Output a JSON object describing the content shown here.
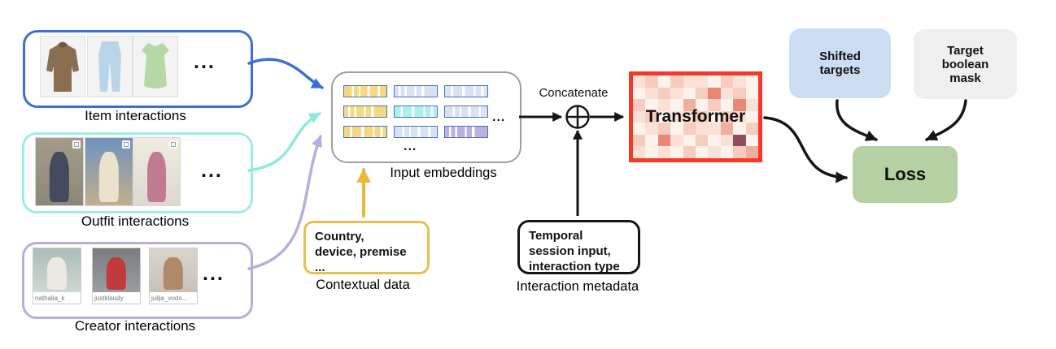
{
  "sources": [
    {
      "label": "Item interactions",
      "ellipsis": "...",
      "border_color": "#3c6fd6",
      "items": [
        {
          "name": "coat",
          "color": "#8a6e52"
        },
        {
          "name": "jeans",
          "color": "#b9d3e9"
        },
        {
          "name": "dress",
          "color": "#b7d8a6"
        }
      ]
    },
    {
      "label": "Outfit interactions",
      "ellipsis": "...",
      "border_color": "#9beee6",
      "photos": [
        {
          "bg1": "#a39c8b",
          "bg2": "#8c8878",
          "figure": "#444b5e"
        },
        {
          "bg1": "#6f93bd",
          "bg2": "#c3ae8d",
          "figure": "#eae2cd"
        },
        {
          "bg1": "#efecdf",
          "bg2": "#ddd8d0",
          "figure": "#c17b90"
        }
      ]
    },
    {
      "label": "Creator interactions",
      "ellipsis": "...",
      "border_color": "#b9addc",
      "creators": [
        {
          "username": "nathalia_k",
          "bg1": "#a9bdb8",
          "bg2": "#cfd8d1",
          "figure": "#ece9e2"
        },
        {
          "username": "justklaudy",
          "bg1": "#7b7d80",
          "bg2": "#989ea2",
          "figure": "#c23b3b"
        },
        {
          "username": "julija_vodo...",
          "bg1": "#dad5cc",
          "bg2": "#c8c1b7",
          "figure": "#b08a68"
        }
      ]
    }
  ],
  "embeddings": {
    "label": "Input embeddings",
    "ellipsis_right": "...",
    "ellipsis_bottom": "...",
    "border_color": "#9aa0a6",
    "cell_border": "#4673c8",
    "cell_colors": {
      "yellow": "#f6d97e",
      "lightblue": "#d9e2f5",
      "cyan": "#abf1e9",
      "purple": "#bcb0df"
    },
    "grid": [
      [
        "yellow",
        "lightblue",
        "lightblue"
      ],
      [
        "yellow",
        "cyan",
        "lightblue"
      ],
      [
        "yellow",
        "lightblue",
        "purple"
      ]
    ]
  },
  "contextual": {
    "text": "Country,\ndevice, premise\n...",
    "label": "Contextual data",
    "border_color": "#e9c04b"
  },
  "concatenate": {
    "label": "Concatenate",
    "icon": "circled-plus"
  },
  "metadata": {
    "text": "Temporal\nsession input,\ninteraction type",
    "label": "Interaction metadata",
    "border_color": "#151515"
  },
  "transformer": {
    "label": "Transformer",
    "border_color": "#f4392b",
    "heatmap_palette": [
      "#fdf2ec",
      "#f9e1d6",
      "#f5ccbe",
      "#f0af9e",
      "#e98876",
      "#dc6e62",
      "#8e4e5c"
    ],
    "heatmap_rows": [
      "1202110210",
      "0121024120",
      "2010302041",
      "1201120210",
      "0120211302",
      "2041020160",
      "1010201023"
    ]
  },
  "shifted_targets": {
    "text": "Shifted\ntargets",
    "fill": "#cbddf1"
  },
  "boolean_mask": {
    "text": "Target\nboolean\nmask",
    "fill": "#efefef"
  },
  "loss": {
    "label": "Loss",
    "fill": "#b5d0a2"
  },
  "arrow_colors": {
    "item": "#3c6fd6",
    "outfit": "#8fe9de",
    "creator": "#b9addc",
    "contextual": "#e9b83f",
    "black": "#151515"
  }
}
